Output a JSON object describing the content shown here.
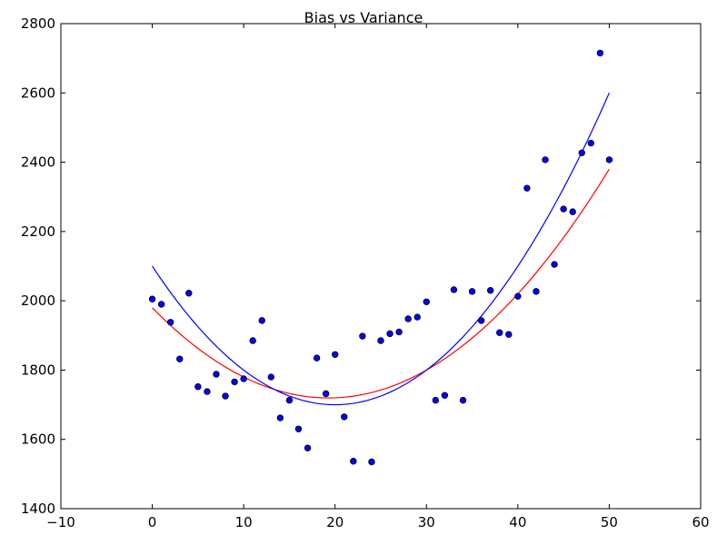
{
  "chart_data": {
    "type": "scatter",
    "title": "Bias vs Variance",
    "xlabel": "",
    "ylabel": "",
    "xlim": [
      -10,
      60
    ],
    "ylim": [
      1400,
      2800
    ],
    "xticks": [
      -10,
      0,
      10,
      20,
      30,
      40,
      50,
      60
    ],
    "xtick_labels": [
      "−10",
      "0",
      "10",
      "20",
      "30",
      "40",
      "50",
      "60"
    ],
    "yticks": [
      1400,
      1600,
      1800,
      2000,
      2200,
      2400,
      2600,
      2800
    ],
    "ytick_labels": [
      "1400",
      "1600",
      "1800",
      "2000",
      "2200",
      "2400",
      "2600",
      "2800"
    ],
    "grid": false,
    "legend": "none",
    "points": {
      "color": "#0000ff",
      "edge_color": "#000000",
      "x": [
        0,
        1,
        2,
        3,
        4,
        5,
        6,
        7,
        8,
        9,
        10,
        11,
        12,
        13,
        14,
        15,
        16,
        17,
        18,
        19,
        20,
        21,
        22,
        23,
        24,
        25,
        26,
        27,
        28,
        29,
        30,
        31,
        32,
        33,
        34,
        35,
        36,
        37,
        38,
        39,
        40,
        41,
        42,
        43,
        44,
        45,
        46,
        47,
        48,
        49,
        50
      ],
      "y": [
        2005,
        1990,
        1938,
        1832,
        2022,
        1752,
        1738,
        1788,
        1725,
        1766,
        1775,
        1885,
        1943,
        1780,
        1662,
        1713,
        1630,
        1575,
        1835,
        1732,
        1845,
        1665,
        1537,
        1898,
        1535,
        1885,
        1905,
        1910,
        1948,
        1953,
        1997,
        1713,
        1727,
        2032,
        1713,
        2027,
        1943,
        2030,
        1908,
        1903,
        2013,
        2325,
        2027,
        2407,
        2105,
        2265,
        2257,
        2427,
        2455,
        2715,
        2407
      ]
    },
    "series": [
      {
        "color": "#ff0000",
        "type": "quadratic-fit",
        "coefficients": [
          1980,
          -27.0,
          0.7
        ],
        "x_range": [
          0,
          50
        ]
      },
      {
        "color": "#0000ff",
        "type": "quadratic-fit",
        "coefficients": [
          2100,
          -40.0,
          1.0
        ],
        "x_range": [
          0,
          50
        ]
      }
    ]
  }
}
